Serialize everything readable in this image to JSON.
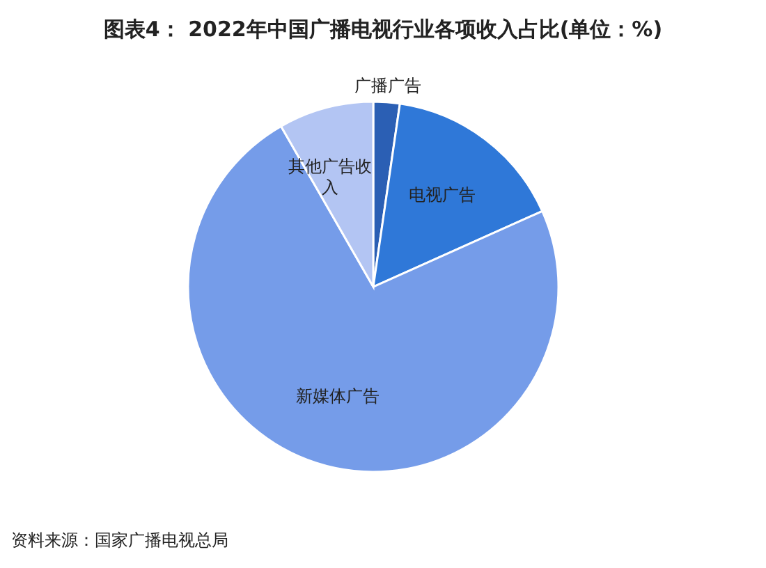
{
  "chart_data": {
    "type": "pie",
    "title": "图表4： 2022年中国广播电视行业各项收入占比(单位：%)",
    "categories": [
      "广播广告",
      "电视广告",
      "新媒体广告",
      "其他广告收入"
    ],
    "values": [
      2.3,
      16.0,
      73.4,
      8.3
    ],
    "colors": [
      "#2b5fb4",
      "#2f78d8",
      "#759ce9",
      "#b3c5f3"
    ],
    "annotations": [
      "资料来源：国家广播电视总局"
    ]
  }
}
